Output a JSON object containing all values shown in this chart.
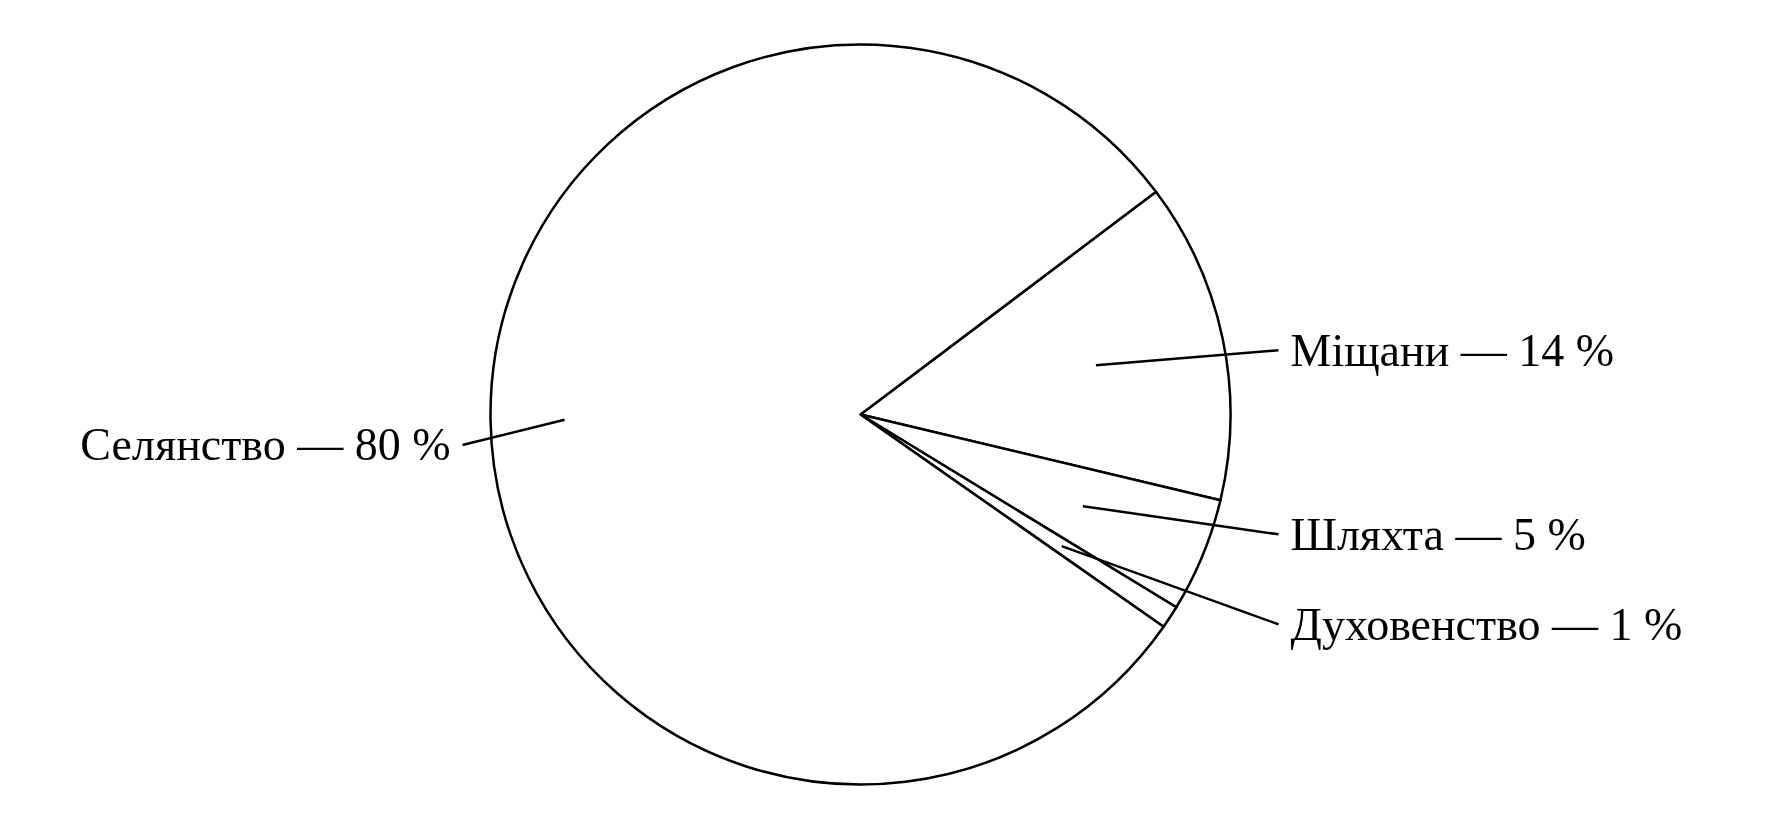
{
  "chart_data": {
    "type": "pie",
    "categories": [
      "Міщани",
      "Шляхта",
      "Духовенство",
      "Селянство"
    ],
    "values": [
      14,
      5,
      1,
      80
    ],
    "value_labels": [
      "— 14 %",
      "— 5 %",
      "— 1 %",
      "— 80 %"
    ],
    "colors": [
      "#ffffff",
      "#ffffff",
      "#ffffff",
      "#ffffff"
    ]
  }
}
